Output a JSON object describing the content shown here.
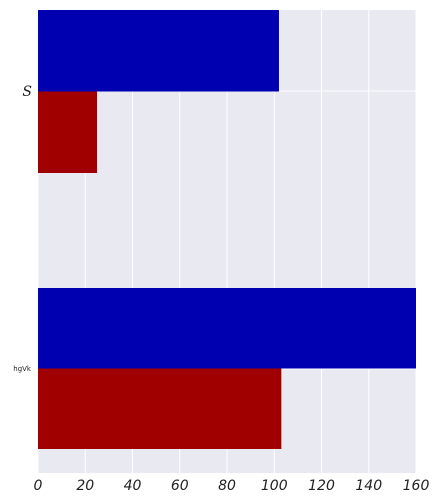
{
  "chart_data": {
    "type": "bar",
    "orientation": "horizontal",
    "categories": [
      "S",
      "hgVk"
    ],
    "series": [
      {
        "values": [
          102,
          160
        ],
        "color": "#0000b0"
      },
      {
        "values": [
          25,
          103
        ],
        "color": "#a00000"
      }
    ],
    "x_ticks": [
      "0",
      "20",
      "40",
      "60",
      "80",
      "100",
      "120",
      "140",
      "160"
    ],
    "xlim": [
      0,
      160
    ],
    "grid": true,
    "background": "#e9e9f2",
    "title": "",
    "xlabel": "",
    "ylabel": ""
  }
}
